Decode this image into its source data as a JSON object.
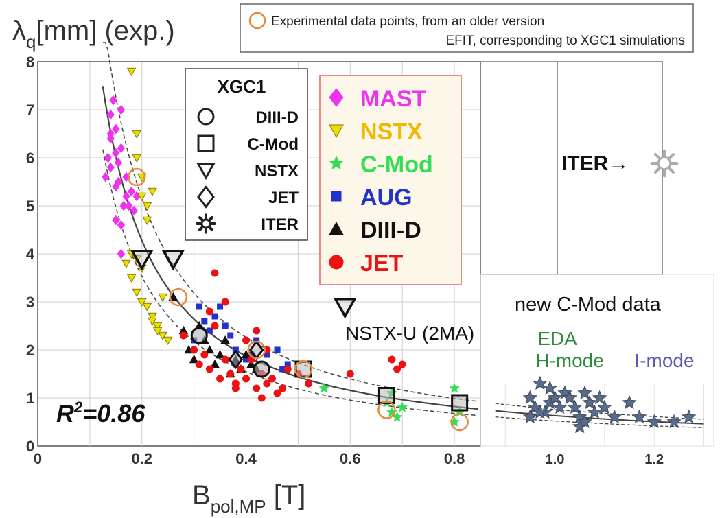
{
  "chart_data": [
    {
      "type": "scatter",
      "ylabel_main": "λ",
      "ylabel_sub": "q",
      "ylabel_rest": "[mm] (exp.)",
      "xlabel_main": "B",
      "xlabel_sub": "pol,MP",
      "xlabel_rest": " [T]",
      "xlim": [
        0,
        0.85
      ],
      "ylim": [
        0,
        8
      ],
      "xticks": [
        "0",
        "0.2",
        "0.4",
        "0.6",
        "0.8"
      ],
      "yticks": [
        "0",
        "1",
        "2",
        "3",
        "4",
        "5",
        "6",
        "7",
        "8"
      ],
      "grid": true,
      "r2_label": "R",
      "r2_sup": "2",
      "r2_value": "=0.86",
      "annotation_nstxu": "NSTX-U (2MA)",
      "experimental_note_line1": "Experimental data points, from an older version",
      "experimental_note_line2": "EFIT, corresponding to XGC1 simulations",
      "legend_xgc1_title": "XGC1",
      "legend_xgc1": [
        "DIII-D",
        "C-Mod",
        "NSTX",
        "JET",
        "ITER"
      ],
      "legend_exp": [
        {
          "name": "MAST",
          "color": "#ee33ee",
          "marker": "diamond"
        },
        {
          "name": "NSTX",
          "color": "#f0c000",
          "marker": "triangle-down"
        },
        {
          "name": "C-Mod",
          "color": "#33dd55",
          "marker": "star"
        },
        {
          "name": "AUG",
          "color": "#2233cc",
          "marker": "square"
        },
        {
          "name": "DIII-D",
          "color": "#111111",
          "marker": "triangle-up"
        },
        {
          "name": "JET",
          "color": "#ee1111",
          "marker": "circle"
        }
      ],
      "fit_curve": {
        "formula": "lambda_q = 0.63 * B^-1.19",
        "x": [
          0.1,
          0.85
        ]
      },
      "series": [
        {
          "name": "MAST",
          "x": [
            0.13,
            0.135,
            0.14,
            0.14,
            0.145,
            0.15,
            0.15,
            0.155,
            0.16,
            0.16,
            0.165,
            0.17,
            0.14,
            0.15,
            0.155,
            0.16,
            0.17,
            0.175,
            0.18,
            0.185,
            0.19,
            0.14,
            0.15,
            0.16
          ],
          "y": [
            5.6,
            6.0,
            6.4,
            6.9,
            7.2,
            6.6,
            5.4,
            5.9,
            6.2,
            7.0,
            5.0,
            5.2,
            5.8,
            6.1,
            5.5,
            4.0,
            5.6,
            5.0,
            5.3,
            4.9,
            5.2,
            6.5,
            4.7,
            4.6
          ]
        },
        {
          "name": "NSTX",
          "x": [
            0.18,
            0.19,
            0.19,
            0.2,
            0.2,
            0.21,
            0.21,
            0.22,
            0.17,
            0.18,
            0.19,
            0.2,
            0.21,
            0.22,
            0.23,
            0.24,
            0.25,
            0.18,
            0.19,
            0.2,
            0.22,
            0.23,
            0.24
          ],
          "y": [
            7.8,
            6.5,
            6.0,
            5.6,
            5.2,
            5.0,
            4.7,
            5.3,
            3.8,
            3.5,
            3.2,
            3.0,
            2.9,
            2.7,
            2.5,
            2.3,
            2.2,
            4.0,
            3.9,
            3.7,
            2.6,
            2.4,
            3.1
          ]
        },
        {
          "name": "C-Mod",
          "x": [
            0.55,
            0.67,
            0.68,
            0.69,
            0.7,
            0.8,
            0.81,
            0.8,
            0.68
          ],
          "y": [
            1.2,
            0.9,
            0.7,
            0.6,
            0.8,
            1.2,
            0.7,
            0.5,
            1.1
          ]
        },
        {
          "name": "AUG",
          "x": [
            0.31,
            0.32,
            0.33,
            0.35,
            0.36,
            0.37,
            0.38,
            0.4,
            0.42,
            0.44,
            0.46,
            0.47,
            0.48,
            0.5,
            0.3,
            0.34,
            0.38,
            0.41
          ],
          "y": [
            2.9,
            2.6,
            2.4,
            2.9,
            2.5,
            2.3,
            2.0,
            1.8,
            2.2,
            1.9,
            2.0,
            1.6,
            1.7,
            1.5,
            2.2,
            2.7,
            1.7,
            1.9
          ]
        },
        {
          "name": "DIII-D",
          "x": [
            0.26,
            0.28,
            0.3,
            0.31,
            0.32,
            0.33,
            0.34,
            0.35,
            0.36,
            0.38,
            0.39,
            0.4,
            0.41,
            0.42,
            0.29,
            0.37
          ],
          "y": [
            3.1,
            2.4,
            1.8,
            2.5,
            2.2,
            2.0,
            1.7,
            1.9,
            2.2,
            1.8,
            1.6,
            1.9,
            1.7,
            1.6,
            2.0,
            1.5
          ]
        },
        {
          "name": "JET",
          "x": [
            0.28,
            0.3,
            0.31,
            0.32,
            0.33,
            0.34,
            0.35,
            0.36,
            0.37,
            0.38,
            0.39,
            0.4,
            0.41,
            0.42,
            0.43,
            0.44,
            0.45,
            0.47,
            0.5,
            0.52,
            0.6,
            0.68,
            0.69,
            0.7,
            0.34,
            0.36,
            0.4,
            0.42,
            0.44,
            0.46,
            0.33,
            0.38,
            0.43,
            0.48
          ],
          "y": [
            2.3,
            2.0,
            1.7,
            1.9,
            1.6,
            2.5,
            1.4,
            1.8,
            1.5,
            1.3,
            1.6,
            1.4,
            1.8,
            1.2,
            1.5,
            1.3,
            1.4,
            1.2,
            1.5,
            1.3,
            1.5,
            1.8,
            1.6,
            1.7,
            3.6,
            3.0,
            2.2,
            2.4,
            2.0,
            1.1,
            2.8,
            1.2,
            1.0,
            1.6
          ]
        },
        {
          "name": "XGC1 DIII-D",
          "x": [
            0.31,
            0.43
          ],
          "y": [
            2.3,
            1.6
          ]
        },
        {
          "name": "XGC1 C-Mod",
          "x": [
            0.51,
            0.67,
            0.81
          ],
          "y": [
            1.6,
            1.05,
            0.9
          ]
        },
        {
          "name": "XGC1 NSTX",
          "x": [
            0.2,
            0.26,
            0.59
          ],
          "y": [
            3.9,
            3.9,
            2.9
          ]
        },
        {
          "name": "XGC1 JET",
          "x": [
            0.42,
            0.38
          ],
          "y": [
            2.0,
            1.8
          ]
        },
        {
          "name": "Experimental (older EFIT)",
          "x": [
            0.19,
            0.27,
            0.42,
            0.51,
            0.67,
            0.81
          ],
          "y": [
            5.6,
            3.1,
            2.0,
            1.6,
            0.75,
            0.5
          ]
        }
      ]
    },
    {
      "type": "scatter",
      "title": "new C-Mod data",
      "xticks": [
        "1.0",
        "1.2"
      ],
      "xlim": [
        0.85,
        1.32
      ],
      "ylim": [
        0,
        8
      ],
      "iter_label": "ITER→",
      "eda_label_line1": "EDA",
      "eda_label_line2": "H-mode",
      "imode_label": "I-mode",
      "series": [
        {
          "name": "EDA H-mode",
          "color": "#2e8b3e",
          "x": [
            0.95,
            0.96,
            0.97,
            0.98,
            0.99,
            1.0,
            1.01,
            1.02,
            0.95,
            0.97,
            0.99
          ],
          "y": [
            1.0,
            0.8,
            1.3,
            0.7,
            0.9,
            1.0,
            0.8,
            1.1,
            0.6,
            0.7,
            1.2
          ]
        },
        {
          "name": "I-mode",
          "color": "#5a5ab0",
          "x": [
            1.03,
            1.04,
            1.05,
            1.06,
            1.07,
            1.08,
            1.09,
            1.1,
            1.12,
            1.15,
            1.17,
            1.2,
            1.24,
            1.27,
            1.05,
            1.06
          ],
          "y": [
            1.0,
            0.8,
            0.6,
            1.1,
            0.9,
            0.7,
            1.0,
            0.8,
            0.6,
            0.9,
            0.6,
            0.5,
            0.5,
            0.6,
            0.4,
            0.5
          ]
        }
      ]
    }
  ]
}
